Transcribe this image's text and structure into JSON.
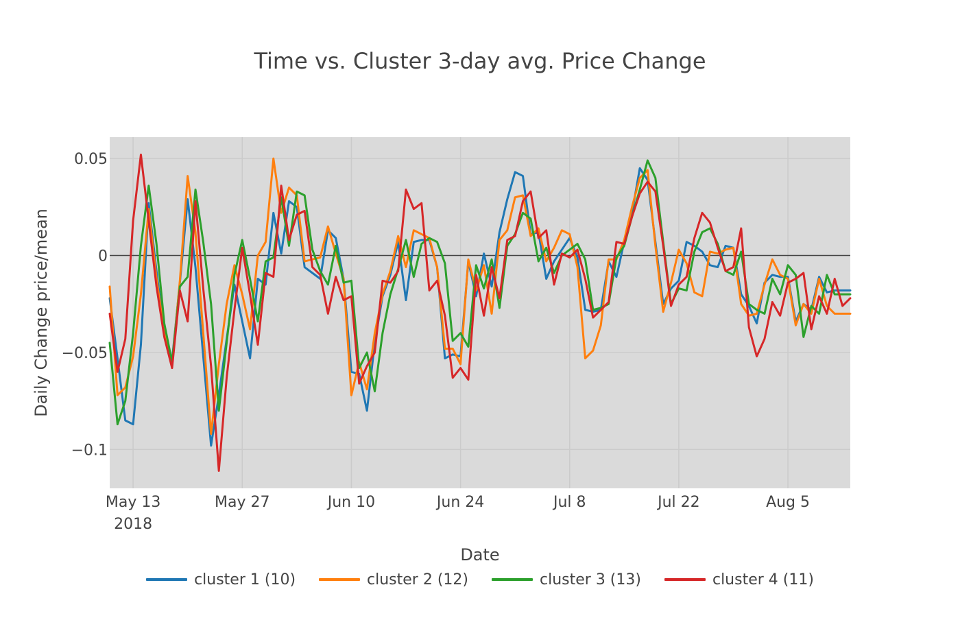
{
  "chart_data": {
    "type": "line",
    "title": "Time vs. Cluster 3-day avg. Price Change",
    "xlabel": "Date",
    "ylabel": "Daily Change price/mean",
    "x_start": "2018-05-13",
    "x_ticks": [
      {
        "date": "2018-05-13",
        "label": "May 13",
        "sublabel": "2018"
      },
      {
        "date": "2018-05-27",
        "label": "May 27"
      },
      {
        "date": "2018-06-10",
        "label": "Jun 10"
      },
      {
        "date": "2018-06-24",
        "label": "Jun 24"
      },
      {
        "date": "2018-07-08",
        "label": "Jul 8"
      },
      {
        "date": "2018-07-22",
        "label": "Jul 22"
      },
      {
        "date": "2018-08-05",
        "label": "Aug 5"
      }
    ],
    "xlim": [
      "2018-05-10",
      "2018-08-13"
    ],
    "ylim": [
      -0.12,
      0.061
    ],
    "y_ticks": [
      {
        "value": 0.05,
        "label": "0.05"
      },
      {
        "value": 0,
        "label": "0"
      },
      {
        "value": -0.05,
        "label": "−0.05"
      },
      {
        "value": -0.1,
        "label": "−0.1"
      }
    ],
    "grid": true,
    "zero_line": true,
    "legend_position": "bottom",
    "colors": {
      "plot_bg": "#dadada",
      "grid": "#cbcbcb",
      "zero_line": "#444444",
      "text": "#444444"
    },
    "series": [
      {
        "name": "cluster 1 (10)",
        "color": "#1f77b4",
        "x": [
          "2018-05-10",
          "2018-05-11",
          "2018-05-12",
          "2018-05-13",
          "2018-05-14",
          "2018-05-15",
          "2018-05-16",
          "2018-05-17",
          "2018-05-18",
          "2018-05-19",
          "2018-05-20",
          "2018-05-21",
          "2018-05-22",
          "2018-05-23",
          "2018-05-24",
          "2018-05-25",
          "2018-05-26",
          "2018-05-27",
          "2018-05-28",
          "2018-05-29",
          "2018-05-30",
          "2018-05-31",
          "2018-06-01",
          "2018-06-02",
          "2018-06-03",
          "2018-06-04",
          "2018-06-05",
          "2018-06-06",
          "2018-06-07",
          "2018-06-08",
          "2018-06-09",
          "2018-06-10",
          "2018-06-11",
          "2018-06-12",
          "2018-06-13",
          "2018-06-14",
          "2018-06-15",
          "2018-06-16",
          "2018-06-17",
          "2018-06-18",
          "2018-06-19",
          "2018-06-20",
          "2018-06-21",
          "2018-06-22",
          "2018-06-23",
          "2018-06-24",
          "2018-06-25",
          "2018-06-26",
          "2018-06-27",
          "2018-06-28",
          "2018-06-29",
          "2018-06-30",
          "2018-07-01",
          "2018-07-02",
          "2018-07-03",
          "2018-07-04",
          "2018-07-05",
          "2018-07-06",
          "2018-07-07",
          "2018-07-08",
          "2018-07-09",
          "2018-07-10",
          "2018-07-11",
          "2018-07-12",
          "2018-07-13",
          "2018-07-14",
          "2018-07-15",
          "2018-07-16",
          "2018-07-17",
          "2018-07-18",
          "2018-07-19",
          "2018-07-20",
          "2018-07-21",
          "2018-07-22",
          "2018-07-23",
          "2018-07-24",
          "2018-07-25",
          "2018-07-26",
          "2018-07-27",
          "2018-07-28",
          "2018-07-29",
          "2018-07-30",
          "2018-07-31",
          "2018-08-01",
          "2018-08-02",
          "2018-08-03",
          "2018-08-04",
          "2018-08-05",
          "2018-08-06",
          "2018-08-07",
          "2018-08-08",
          "2018-08-09",
          "2018-08-10",
          "2018-08-11",
          "2018-08-12",
          "2018-08-13"
        ],
        "y": [
          -0.022,
          -0.053,
          -0.085,
          -0.087,
          -0.046,
          0.027,
          -0.008,
          -0.04,
          -0.054,
          -0.014,
          0.029,
          -0.006,
          -0.052,
          -0.098,
          -0.072,
          -0.043,
          -0.015,
          -0.034,
          -0.053,
          -0.012,
          -0.015,
          0.022,
          0.001,
          0.028,
          0.025,
          -0.006,
          -0.009,
          -0.012,
          0.013,
          0.009,
          -0.012,
          -0.06,
          -0.061,
          -0.08,
          -0.045,
          -0.021,
          -0.01,
          0.007,
          -0.023,
          0.007,
          0.008,
          0.008,
          -0.006,
          -0.053,
          -0.051,
          -0.052,
          -0.003,
          -0.021,
          0.001,
          -0.016,
          0.012,
          0.029,
          0.043,
          0.041,
          0.011,
          0.012,
          -0.012,
          -0.003,
          0.003,
          0.009,
          -0.001,
          -0.028,
          -0.029,
          -0.028,
          -0.003,
          -0.011,
          0.007,
          0.022,
          0.045,
          0.039,
          0.007,
          -0.025,
          -0.017,
          -0.013,
          0.007,
          0.005,
          0.002,
          -0.005,
          -0.006,
          0.005,
          0.004,
          -0.02,
          -0.026,
          -0.035,
          -0.014,
          -0.01,
          -0.011,
          -0.011,
          -0.034,
          -0.025,
          -0.028,
          -0.011,
          -0.019,
          -0.018,
          -0.018,
          -0.018
        ]
      },
      {
        "name": "cluster 2 (12)",
        "color": "#ff7f0e",
        "x": [
          "2018-05-10",
          "2018-05-11",
          "2018-05-12",
          "2018-05-13",
          "2018-05-14",
          "2018-05-15",
          "2018-05-16",
          "2018-05-17",
          "2018-05-18",
          "2018-05-19",
          "2018-05-20",
          "2018-05-21",
          "2018-05-22",
          "2018-05-23",
          "2018-05-24",
          "2018-05-25",
          "2018-05-26",
          "2018-05-27",
          "2018-05-28",
          "2018-05-29",
          "2018-05-30",
          "2018-05-31",
          "2018-06-01",
          "2018-06-02",
          "2018-06-03",
          "2018-06-04",
          "2018-06-05",
          "2018-06-06",
          "2018-06-07",
          "2018-06-08",
          "2018-06-09",
          "2018-06-10",
          "2018-06-11",
          "2018-06-12",
          "2018-06-13",
          "2018-06-14",
          "2018-06-15",
          "2018-06-16",
          "2018-06-17",
          "2018-06-18",
          "2018-06-19",
          "2018-06-20",
          "2018-06-21",
          "2018-06-22",
          "2018-06-23",
          "2018-06-24",
          "2018-06-25",
          "2018-06-26",
          "2018-06-27",
          "2018-06-28",
          "2018-06-29",
          "2018-06-30",
          "2018-07-01",
          "2018-07-02",
          "2018-07-03",
          "2018-07-04",
          "2018-07-05",
          "2018-07-06",
          "2018-07-07",
          "2018-07-08",
          "2018-07-09",
          "2018-07-10",
          "2018-07-11",
          "2018-07-12",
          "2018-07-13",
          "2018-07-14",
          "2018-07-15",
          "2018-07-16",
          "2018-07-17",
          "2018-07-18",
          "2018-07-19",
          "2018-07-20",
          "2018-07-21",
          "2018-07-22",
          "2018-07-23",
          "2018-07-24",
          "2018-07-25",
          "2018-07-26",
          "2018-07-27",
          "2018-07-28",
          "2018-07-29",
          "2018-07-30",
          "2018-07-31",
          "2018-08-01",
          "2018-08-02",
          "2018-08-03",
          "2018-08-04",
          "2018-08-05",
          "2018-08-06",
          "2018-08-07",
          "2018-08-08",
          "2018-08-09",
          "2018-08-10",
          "2018-08-11",
          "2018-08-12",
          "2018-08-13"
        ],
        "y": [
          -0.016,
          -0.072,
          -0.068,
          -0.052,
          -0.02,
          0.024,
          -0.012,
          -0.04,
          -0.056,
          -0.013,
          0.041,
          0.012,
          -0.04,
          -0.092,
          -0.056,
          -0.025,
          -0.005,
          -0.02,
          -0.038,
          0.0,
          0.007,
          0.05,
          0.022,
          0.035,
          0.031,
          -0.003,
          -0.002,
          -0.001,
          0.015,
          0.001,
          -0.012,
          -0.072,
          -0.055,
          -0.069,
          -0.04,
          -0.02,
          -0.008,
          0.01,
          -0.006,
          0.013,
          0.011,
          0.009,
          -0.006,
          -0.048,
          -0.048,
          -0.056,
          -0.002,
          -0.018,
          -0.005,
          -0.03,
          0.008,
          0.013,
          0.03,
          0.031,
          0.01,
          0.014,
          -0.003,
          0.004,
          0.013,
          0.011,
          -0.006,
          -0.053,
          -0.049,
          -0.036,
          -0.002,
          -0.002,
          0.008,
          0.025,
          0.04,
          0.044,
          0.005,
          -0.029,
          -0.014,
          0.003,
          -0.004,
          -0.019,
          -0.021,
          0.002,
          0.001,
          0.003,
          0.004,
          -0.025,
          -0.031,
          -0.03,
          -0.015,
          -0.002,
          -0.01,
          -0.012,
          -0.036,
          -0.025,
          -0.03,
          -0.012,
          -0.026,
          -0.03,
          -0.03,
          -0.03
        ]
      },
      {
        "name": "cluster 3 (13)",
        "color": "#2ca02c",
        "x": [
          "2018-05-10",
          "2018-05-11",
          "2018-05-12",
          "2018-05-13",
          "2018-05-14",
          "2018-05-15",
          "2018-05-16",
          "2018-05-17",
          "2018-05-18",
          "2018-05-19",
          "2018-05-20",
          "2018-05-21",
          "2018-05-22",
          "2018-05-23",
          "2018-05-24",
          "2018-05-25",
          "2018-05-26",
          "2018-05-27",
          "2018-05-28",
          "2018-05-29",
          "2018-05-30",
          "2018-05-31",
          "2018-06-01",
          "2018-06-02",
          "2018-06-03",
          "2018-06-04",
          "2018-06-05",
          "2018-06-06",
          "2018-06-07",
          "2018-06-08",
          "2018-06-09",
          "2018-06-10",
          "2018-06-11",
          "2018-06-12",
          "2018-06-13",
          "2018-06-14",
          "2018-06-15",
          "2018-06-16",
          "2018-06-17",
          "2018-06-18",
          "2018-06-19",
          "2018-06-20",
          "2018-06-21",
          "2018-06-22",
          "2018-06-23",
          "2018-06-24",
          "2018-06-25",
          "2018-06-26",
          "2018-06-27",
          "2018-06-28",
          "2018-06-29",
          "2018-06-30",
          "2018-07-01",
          "2018-07-02",
          "2018-07-03",
          "2018-07-04",
          "2018-07-05",
          "2018-07-06",
          "2018-07-07",
          "2018-07-08",
          "2018-07-09",
          "2018-07-10",
          "2018-07-11",
          "2018-07-12",
          "2018-07-13",
          "2018-07-14",
          "2018-07-15",
          "2018-07-16",
          "2018-07-17",
          "2018-07-18",
          "2018-07-19",
          "2018-07-20",
          "2018-07-21",
          "2018-07-22",
          "2018-07-23",
          "2018-07-24",
          "2018-07-25",
          "2018-07-26",
          "2018-07-27",
          "2018-07-28",
          "2018-07-29",
          "2018-07-30",
          "2018-07-31",
          "2018-08-01",
          "2018-08-02",
          "2018-08-03",
          "2018-08-04",
          "2018-08-05",
          "2018-08-06",
          "2018-08-07",
          "2018-08-08",
          "2018-08-09",
          "2018-08-10",
          "2018-08-11",
          "2018-08-12",
          "2018-08-13"
        ],
        "y": [
          -0.045,
          -0.087,
          -0.075,
          -0.04,
          0.005,
          0.036,
          0.006,
          -0.035,
          -0.055,
          -0.016,
          -0.011,
          0.034,
          0.007,
          -0.025,
          -0.08,
          -0.045,
          -0.01,
          0.008,
          -0.012,
          -0.034,
          -0.003,
          -0.001,
          0.03,
          0.005,
          0.033,
          0.031,
          0.003,
          -0.008,
          -0.015,
          0.005,
          -0.014,
          -0.013,
          -0.058,
          -0.05,
          -0.07,
          -0.04,
          -0.02,
          -0.007,
          0.008,
          -0.011,
          0.006,
          0.009,
          0.007,
          -0.004,
          -0.044,
          -0.04,
          -0.047,
          -0.005,
          -0.017,
          -0.002,
          -0.027,
          0.005,
          0.011,
          0.022,
          0.019,
          -0.003,
          0.004,
          -0.009,
          0.0,
          0.003,
          0.006,
          -0.002,
          -0.028,
          -0.027,
          -0.025,
          -0.001,
          0.005,
          0.02,
          0.034,
          0.049,
          0.04,
          0.007,
          -0.025,
          -0.017,
          -0.018,
          0.002,
          0.012,
          0.014,
          0.006,
          -0.008,
          -0.01,
          0.002,
          -0.025,
          -0.028,
          -0.03,
          -0.012,
          -0.02,
          -0.005,
          -0.01,
          -0.042,
          -0.026,
          -0.03,
          -0.01,
          -0.02,
          -0.02,
          -0.02
        ]
      },
      {
        "name": "cluster 4 (11)",
        "color": "#d62728",
        "x": [
          "2018-05-10",
          "2018-05-11",
          "2018-05-12",
          "2018-05-13",
          "2018-05-14",
          "2018-05-15",
          "2018-05-16",
          "2018-05-17",
          "2018-05-18",
          "2018-05-19",
          "2018-05-20",
          "2018-05-21",
          "2018-05-22",
          "2018-05-23",
          "2018-05-24",
          "2018-05-25",
          "2018-05-26",
          "2018-05-27",
          "2018-05-28",
          "2018-05-29",
          "2018-05-30",
          "2018-05-31",
          "2018-06-01",
          "2018-06-02",
          "2018-06-03",
          "2018-06-04",
          "2018-06-05",
          "2018-06-06",
          "2018-06-07",
          "2018-06-08",
          "2018-06-09",
          "2018-06-10",
          "2018-06-11",
          "2018-06-12",
          "2018-06-13",
          "2018-06-14",
          "2018-06-15",
          "2018-06-16",
          "2018-06-17",
          "2018-06-18",
          "2018-06-19",
          "2018-06-20",
          "2018-06-21",
          "2018-06-22",
          "2018-06-23",
          "2018-06-24",
          "2018-06-25",
          "2018-06-26",
          "2018-06-27",
          "2018-06-28",
          "2018-06-29",
          "2018-06-30",
          "2018-07-01",
          "2018-07-02",
          "2018-07-03",
          "2018-07-04",
          "2018-07-05",
          "2018-07-06",
          "2018-07-07",
          "2018-07-08",
          "2018-07-09",
          "2018-07-10",
          "2018-07-11",
          "2018-07-12",
          "2018-07-13",
          "2018-07-14",
          "2018-07-15",
          "2018-07-16",
          "2018-07-17",
          "2018-07-18",
          "2018-07-19",
          "2018-07-20",
          "2018-07-21",
          "2018-07-22",
          "2018-07-23",
          "2018-07-24",
          "2018-07-25",
          "2018-07-26",
          "2018-07-27",
          "2018-07-28",
          "2018-07-29",
          "2018-07-30",
          "2018-07-31",
          "2018-08-01",
          "2018-08-02",
          "2018-08-03",
          "2018-08-04",
          "2018-08-05",
          "2018-08-06",
          "2018-08-07",
          "2018-08-08",
          "2018-08-09",
          "2018-08-10",
          "2018-08-11",
          "2018-08-12",
          "2018-08-13"
        ],
        "y": [
          -0.03,
          -0.06,
          -0.043,
          0.018,
          0.052,
          0.018,
          -0.016,
          -0.042,
          -0.058,
          -0.018,
          -0.034,
          0.028,
          -0.017,
          -0.057,
          -0.111,
          -0.063,
          -0.028,
          0.004,
          -0.02,
          -0.046,
          -0.009,
          -0.011,
          0.036,
          0.008,
          0.021,
          0.023,
          -0.006,
          -0.01,
          -0.03,
          -0.011,
          -0.023,
          -0.021,
          -0.066,
          -0.057,
          -0.05,
          -0.013,
          -0.014,
          -0.008,
          0.034,
          0.024,
          0.027,
          -0.018,
          -0.013,
          -0.031,
          -0.063,
          -0.058,
          -0.064,
          -0.01,
          -0.031,
          -0.006,
          -0.022,
          0.008,
          0.01,
          0.028,
          0.033,
          0.009,
          0.013,
          -0.015,
          0.001,
          -0.001,
          0.003,
          -0.012,
          -0.032,
          -0.028,
          -0.024,
          0.007,
          0.006,
          0.02,
          0.032,
          0.038,
          0.033,
          0.005,
          -0.026,
          -0.015,
          -0.011,
          0.009,
          0.022,
          0.017,
          0.004,
          -0.008,
          -0.006,
          0.014,
          -0.037,
          -0.052,
          -0.043,
          -0.024,
          -0.031,
          -0.014,
          -0.012,
          -0.009,
          -0.038,
          -0.021,
          -0.03,
          -0.012,
          -0.026,
          -0.022
        ]
      }
    ]
  }
}
